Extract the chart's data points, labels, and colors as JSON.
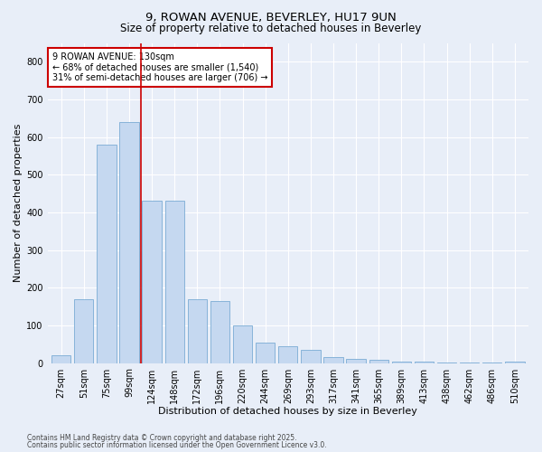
{
  "title_line1": "9, ROWAN AVENUE, BEVERLEY, HU17 9UN",
  "title_line2": "Size of property relative to detached houses in Beverley",
  "xlabel": "Distribution of detached houses by size in Beverley",
  "ylabel": "Number of detached properties",
  "categories": [
    "27sqm",
    "51sqm",
    "75sqm",
    "99sqm",
    "124sqm",
    "148sqm",
    "172sqm",
    "196sqm",
    "220sqm",
    "244sqm",
    "269sqm",
    "293sqm",
    "317sqm",
    "341sqm",
    "365sqm",
    "389sqm",
    "413sqm",
    "438sqm",
    "462sqm",
    "486sqm",
    "510sqm"
  ],
  "values": [
    20,
    170,
    580,
    640,
    430,
    430,
    170,
    165,
    100,
    55,
    45,
    35,
    15,
    10,
    8,
    5,
    3,
    2,
    1,
    1,
    5
  ],
  "bar_color": "#c5d8f0",
  "bar_edge_color": "#7aacd4",
  "vline_color": "#cc0000",
  "annotation_text": "9 ROWAN AVENUE: 130sqm\n← 68% of detached houses are smaller (1,540)\n31% of semi-detached houses are larger (706) →",
  "annotation_box_color": "#ffffff",
  "annotation_box_edge": "#cc0000",
  "ylim": [
    0,
    850
  ],
  "yticks": [
    0,
    100,
    200,
    300,
    400,
    500,
    600,
    700,
    800
  ],
  "bg_color": "#e8eef8",
  "plot_bg_color": "#e8eef8",
  "footer_line1": "Contains HM Land Registry data © Crown copyright and database right 2025.",
  "footer_line2": "Contains public sector information licensed under the Open Government Licence v3.0.",
  "title_fontsize": 9.5,
  "subtitle_fontsize": 8.5,
  "tick_fontsize": 7,
  "xlabel_fontsize": 8,
  "ylabel_fontsize": 8,
  "annotation_fontsize": 7,
  "footer_fontsize": 5.5
}
